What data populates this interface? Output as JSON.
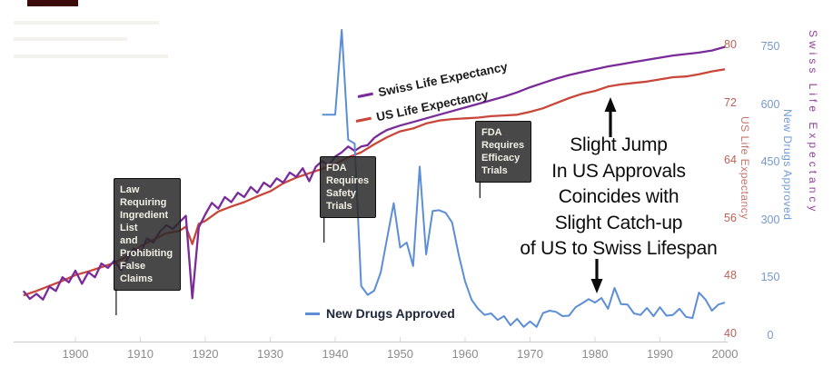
{
  "colors": {
    "swiss_line": "#7a2b99",
    "us_line": "#c9473a",
    "drugs_line": "#5b8ed6",
    "us_axis_text": "#b96158",
    "drugs_axis_text": "#7698ce",
    "swiss_axis_text": "#93419c",
    "x_axis_text": "#8c8c8c",
    "callout_box_bg": "#2a2a2a",
    "annotation_text": "#0c0c0c"
  },
  "chart_data": {
    "type": "line",
    "x_axis": {
      "ticks": [
        1900,
        1910,
        1920,
        1930,
        1940,
        1950,
        1960,
        1970,
        1980,
        1990,
        2000
      ],
      "range": [
        1892,
        2001
      ],
      "grid": false
    },
    "y_axes": [
      {
        "id": "us",
        "label": "US Life Expectancy",
        "ticks": [
          80,
          72,
          64,
          56,
          48,
          40
        ],
        "range": [
          40,
          80
        ],
        "side": "right",
        "color": "#b96158"
      },
      {
        "id": "drugs",
        "label": "New Drugs Approved",
        "ticks": [
          750,
          600,
          450,
          300,
          150,
          0
        ],
        "range": [
          0,
          750
        ],
        "side": "right",
        "color": "#7698ce"
      },
      {
        "id": "swiss",
        "label": "Swiss Life Expectancy",
        "ticks": [],
        "range": [
          40,
          80
        ],
        "side": "right",
        "color": "#93419c"
      }
    ],
    "series": [
      {
        "name": "US Life Expectancy",
        "axis": "life",
        "color": "#c9473a",
        "points": [
          [
            1892,
            45.4
          ],
          [
            1894,
            46
          ],
          [
            1896,
            46.7
          ],
          [
            1898,
            47.4
          ],
          [
            1900,
            48.2
          ],
          [
            1902,
            48.7
          ],
          [
            1904,
            49.3
          ],
          [
            1906,
            49.9
          ],
          [
            1908,
            50.8
          ],
          [
            1910,
            52.2
          ],
          [
            1912,
            53.1
          ],
          [
            1914,
            54
          ],
          [
            1916,
            54.3
          ],
          [
            1917,
            54.9
          ],
          [
            1918,
            52.5
          ],
          [
            1919,
            55.3
          ],
          [
            1920,
            55.7
          ],
          [
            1922,
            57
          ],
          [
            1924,
            57.7
          ],
          [
            1926,
            58.3
          ],
          [
            1928,
            59.1
          ],
          [
            1930,
            59.8
          ],
          [
            1932,
            60.9
          ],
          [
            1934,
            61.7
          ],
          [
            1936,
            62.3
          ],
          [
            1938,
            62.9
          ],
          [
            1940,
            63.6
          ],
          [
            1942,
            64.5
          ],
          [
            1944,
            65.2
          ],
          [
            1946,
            66.3
          ],
          [
            1948,
            67.3
          ],
          [
            1950,
            68.1
          ],
          [
            1952,
            68.5
          ],
          [
            1954,
            69.2
          ],
          [
            1956,
            69.6
          ],
          [
            1958,
            69.8
          ],
          [
            1960,
            69.9
          ],
          [
            1962,
            70
          ],
          [
            1964,
            70.2
          ],
          [
            1966,
            70.3
          ],
          [
            1968,
            70.4
          ],
          [
            1970,
            70.8
          ],
          [
            1972,
            71.3
          ],
          [
            1974,
            72
          ],
          [
            1976,
            72.7
          ],
          [
            1978,
            73.3
          ],
          [
            1980,
            73.7
          ],
          [
            1982,
            74.3
          ],
          [
            1984,
            74.6
          ],
          [
            1986,
            74.8
          ],
          [
            1988,
            75
          ],
          [
            1990,
            75.3
          ],
          [
            1992,
            75.6
          ],
          [
            1994,
            75.7
          ],
          [
            1996,
            76
          ],
          [
            1998,
            76.4
          ],
          [
            2000,
            76.7
          ]
        ]
      },
      {
        "name": "Swiss Life Expectancy",
        "axis": "life",
        "color": "#7a2b99",
        "points": [
          [
            1892,
            46
          ],
          [
            1893,
            44.9
          ],
          [
            1894,
            45.6
          ],
          [
            1895,
            44.8
          ],
          [
            1896,
            46.6
          ],
          [
            1897,
            46
          ],
          [
            1898,
            47.9
          ],
          [
            1899,
            47.2
          ],
          [
            1900,
            48.8
          ],
          [
            1901,
            47
          ],
          [
            1902,
            48.6
          ],
          [
            1903,
            47.9
          ],
          [
            1904,
            49.8
          ],
          [
            1905,
            49.2
          ],
          [
            1906,
            50.2
          ],
          [
            1907,
            48.9
          ],
          [
            1908,
            50.4
          ],
          [
            1909,
            51.9
          ],
          [
            1910,
            51.1
          ],
          [
            1911,
            53.3
          ],
          [
            1912,
            52.7
          ],
          [
            1913,
            54.2
          ],
          [
            1914,
            55.1
          ],
          [
            1915,
            54.6
          ],
          [
            1916,
            55.5
          ],
          [
            1917,
            56.4
          ],
          [
            1918,
            45
          ],
          [
            1919,
            54.8
          ],
          [
            1920,
            56.6
          ],
          [
            1921,
            58.2
          ],
          [
            1922,
            57.4
          ],
          [
            1923,
            59
          ],
          [
            1924,
            58.3
          ],
          [
            1925,
            59.6
          ],
          [
            1926,
            59
          ],
          [
            1927,
            60.4
          ],
          [
            1928,
            59.6
          ],
          [
            1929,
            61
          ],
          [
            1930,
            60.4
          ],
          [
            1931,
            61.6
          ],
          [
            1932,
            61
          ],
          [
            1933,
            62.4
          ],
          [
            1934,
            61.8
          ],
          [
            1935,
            63
          ],
          [
            1936,
            61.2
          ],
          [
            1937,
            63.2
          ],
          [
            1938,
            64
          ],
          [
            1939,
            63.4
          ],
          [
            1940,
            64.6
          ],
          [
            1941,
            65.2
          ],
          [
            1942,
            66
          ],
          [
            1943,
            65.4
          ],
          [
            1944,
            66
          ],
          [
            1945,
            66.2
          ],
          [
            1946,
            67.2
          ],
          [
            1947,
            67.8
          ],
          [
            1948,
            68.3
          ],
          [
            1950,
            68.9
          ],
          [
            1952,
            69.4
          ],
          [
            1954,
            69.9
          ],
          [
            1956,
            70.4
          ],
          [
            1958,
            70.9
          ],
          [
            1960,
            71.4
          ],
          [
            1962,
            71.9
          ],
          [
            1964,
            72.4
          ],
          [
            1966,
            72.9
          ],
          [
            1968,
            73.5
          ],
          [
            1970,
            74.2
          ],
          [
            1972,
            74.8
          ],
          [
            1974,
            75.4
          ],
          [
            1976,
            75.9
          ],
          [
            1978,
            76.3
          ],
          [
            1980,
            76.7
          ],
          [
            1982,
            77.1
          ],
          [
            1984,
            77.4
          ],
          [
            1986,
            77.7
          ],
          [
            1988,
            78
          ],
          [
            1990,
            78.3
          ],
          [
            1992,
            78.6
          ],
          [
            1994,
            78.8
          ],
          [
            1996,
            79
          ],
          [
            1998,
            79.3
          ],
          [
            2000,
            79.8
          ]
        ]
      },
      {
        "name": "New Drugs Approved",
        "axis": "drugs",
        "color": "#5b8ed6",
        "points": [
          [
            1938,
            575
          ],
          [
            1939,
            575
          ],
          [
            1940,
            575
          ],
          [
            1941,
            795
          ],
          [
            1942,
            510
          ],
          [
            1943,
            500
          ],
          [
            1944,
            130
          ],
          [
            1945,
            107
          ],
          [
            1946,
            118
          ],
          [
            1947,
            165
          ],
          [
            1948,
            255
          ],
          [
            1949,
            345
          ],
          [
            1950,
            230
          ],
          [
            1951,
            243
          ],
          [
            1952,
            182
          ],
          [
            1953,
            440
          ],
          [
            1954,
            212
          ],
          [
            1955,
            325
          ],
          [
            1956,
            327
          ],
          [
            1957,
            320
          ],
          [
            1958,
            295
          ],
          [
            1959,
            212
          ],
          [
            1960,
            142
          ],
          [
            1961,
            94
          ],
          [
            1962,
            71
          ],
          [
            1963,
            55
          ],
          [
            1964,
            59
          ],
          [
            1965,
            42
          ],
          [
            1966,
            52
          ],
          [
            1967,
            28
          ],
          [
            1968,
            45
          ],
          [
            1969,
            24
          ],
          [
            1970,
            38
          ],
          [
            1971,
            24
          ],
          [
            1972,
            60
          ],
          [
            1973,
            66
          ],
          [
            1974,
            63
          ],
          [
            1975,
            52
          ],
          [
            1976,
            53
          ],
          [
            1977,
            75
          ],
          [
            1978,
            85
          ],
          [
            1979,
            96
          ],
          [
            1980,
            87
          ],
          [
            1981,
            99
          ],
          [
            1982,
            71
          ],
          [
            1983,
            125
          ],
          [
            1984,
            83
          ],
          [
            1985,
            82
          ],
          [
            1986,
            59
          ],
          [
            1987,
            55
          ],
          [
            1988,
            73
          ],
          [
            1989,
            52
          ],
          [
            1990,
            75
          ],
          [
            1991,
            53
          ],
          [
            1992,
            55
          ],
          [
            1993,
            71
          ],
          [
            1994,
            50
          ],
          [
            1995,
            47
          ],
          [
            1996,
            113
          ],
          [
            1997,
            95
          ],
          [
            1998,
            66
          ],
          [
            1999,
            82
          ],
          [
            2000,
            87
          ]
        ]
      }
    ],
    "callouts": [
      {
        "year": 1906,
        "text": "Law\nRequiring\nIngredient\nList\nand\nProhibiting\nFalse\nClaims"
      },
      {
        "year": 1938,
        "text": "FDA\nRequires\nSafety\nTrials"
      },
      {
        "year": 1962,
        "text": "FDA\nRequires\nEfficacy\nTrials"
      }
    ],
    "annotation": {
      "text": "Slight Jump\nIn US Approvals\nCoincides with\nSlight Catch-up\nof US to Swiss Lifespan"
    },
    "legend": {
      "position": "inline",
      "swiss": "Swiss Life Expectancy",
      "us": "US Life Expectancy",
      "drugs": "New Drugs Approved"
    }
  }
}
